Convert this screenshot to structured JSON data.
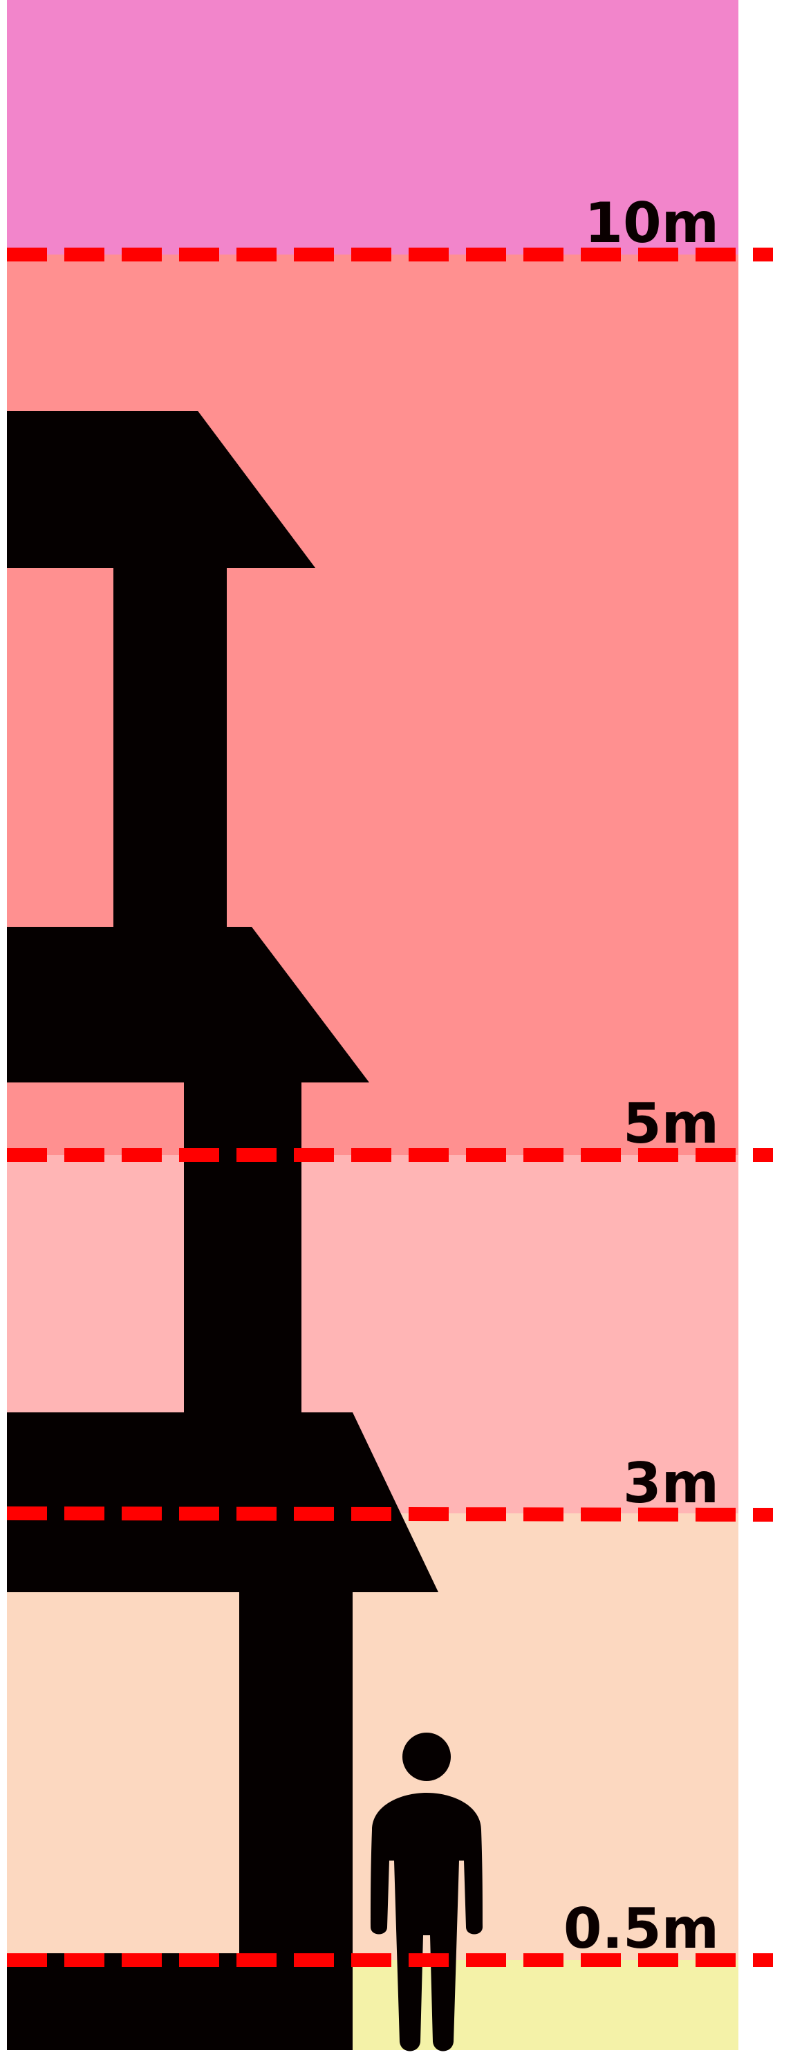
{
  "levels": [
    {
      "label": "10m",
      "value_m": 10
    },
    {
      "label": "5m",
      "value_m": 5
    },
    {
      "label": "3m",
      "value_m": 3
    },
    {
      "label": "0.5m",
      "value_m": 0.5
    }
  ],
  "zone_colors": {
    "above_10m": "#f285cb",
    "5m_to_10m": "#ff9090",
    "3m_to_5m": "#ffb5b5",
    "0.5m_to_3m": "#fcd8c0",
    "below_0.5m": "#f4f2a8"
  },
  "line_color": "#ff0000",
  "silhouette_color": "#050000",
  "icons": {
    "building": "multi-storey-house-silhouette-icon",
    "person": "standing-person-icon"
  }
}
